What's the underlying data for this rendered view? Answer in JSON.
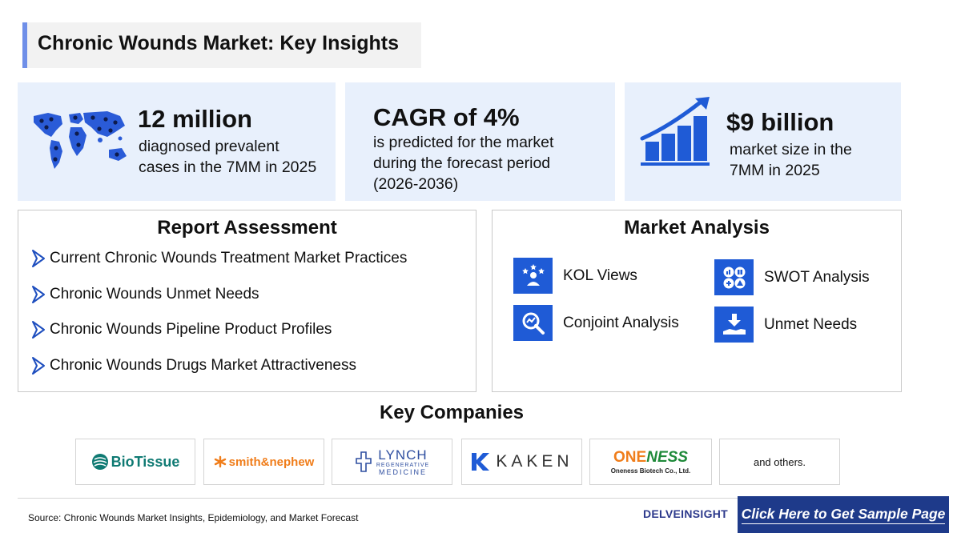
{
  "title": "Chronic Wounds Market: Key Insights",
  "stats": [
    {
      "headline": "12 million",
      "line1": "diagnosed prevalent",
      "line2": "cases in the 7MM in 2025",
      "icon": "world-map-icon"
    },
    {
      "headline": "CAGR of 4%",
      "line1": "is predicted for the market",
      "line2": "during the forecast period",
      "line3": "(2026-2036)"
    },
    {
      "headline": "$9 billion",
      "line1": "market size in the",
      "line2": "7MM in 2025",
      "icon": "growth-chart-icon"
    }
  ],
  "report_assessment": {
    "title": "Report Assessment",
    "items": [
      "Current Chronic Wounds Treatment Market Practices",
      "Chronic Wounds Unmet Needs",
      "Chronic Wounds Pipeline Product Profiles",
      "Chronic Wounds Drugs Market Attractiveness"
    ]
  },
  "market_analysis": {
    "title": "Market Analysis",
    "items": [
      {
        "label": "KOL Views",
        "icon": "kol-views-icon"
      },
      {
        "label": "SWOT Analysis",
        "icon": "swot-icon"
      },
      {
        "label": "Conjoint Analysis",
        "icon": "conjoint-analysis-icon"
      },
      {
        "label": "Unmet Needs",
        "icon": "unmet-needs-icon"
      }
    ]
  },
  "key_companies": {
    "title": "Key Companies",
    "logos": [
      {
        "name": "BioTissue",
        "text": "BioTissue"
      },
      {
        "name": "smith&nephew",
        "text": "smith&nephew"
      },
      {
        "name": "Lynch Regenerative Medicine",
        "text": "LYNCH",
        "sub1": "REGENERATIVE",
        "sub2": "MEDICINE"
      },
      {
        "name": "Kaken",
        "text": "KAKEN"
      },
      {
        "name": "Oneness Biotech",
        "text_a": "ONE",
        "text_b": "NESS",
        "sub": "Oneness Biotech Co., Ltd."
      }
    ],
    "others": "and others."
  },
  "footer": {
    "source": "Source: Chronic Wounds Market Insights, Epidemiology, and Market Forecast",
    "brand": "DELVEINSIGHT",
    "cta": "Click Here to Get Sample Page"
  },
  "colors": {
    "accent_blue": "#1f5bd6",
    "card_bg": "#e8f0fc",
    "cta_bg": "#1e3a8a",
    "title_bar": "#6f8fe8"
  }
}
